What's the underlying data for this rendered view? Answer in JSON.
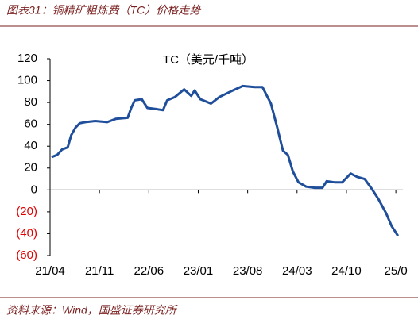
{
  "figure_title": "图表31：铜精矿粗炼费（TC）价格走势",
  "source": "资料来源：Wind，国盛证券研究所",
  "chart_data": {
    "type": "line",
    "title": "TC（美元/千吨）",
    "x": [
      0.2,
      1,
      1.7,
      2.5,
      3,
      3.6,
      4.2,
      5,
      6.4,
      8.1,
      9.3,
      11,
      11.5,
      12,
      13,
      13.8,
      15,
      16,
      16.6,
      17.7,
      19,
      20,
      20.5,
      21.3,
      22.8,
      24,
      25.6,
      27.3,
      29,
      30.1,
      31.3,
      32.2,
      33,
      33.7,
      34.4,
      35.2,
      36.3,
      37.5,
      38.6,
      39.2,
      40.3,
      41.4,
      42.6,
      43.5,
      44.6,
      45.6,
      46.5,
      47.6,
      48.4,
      49.3
    ],
    "series": [
      {
        "name": "TC",
        "color": "#1f4e9b",
        "values": [
          30,
          32,
          37,
          39,
          50,
          57,
          61,
          62,
          63,
          62,
          65,
          66,
          75,
          82,
          83,
          75,
          74,
          73,
          82,
          85,
          92,
          86,
          91,
          83,
          79,
          85,
          90,
          95,
          94,
          94,
          79,
          57,
          36,
          32,
          17,
          7,
          3,
          2,
          2,
          8,
          7,
          7,
          15,
          12,
          10,
          1,
          -8,
          -21,
          -33,
          -42
        ]
      }
    ],
    "xlim": [
      0,
      50
    ],
    "xticks": [
      {
        "value": 0,
        "label": "21/04"
      },
      {
        "value": 7,
        "label": "21/11"
      },
      {
        "value": 14,
        "label": "22/06"
      },
      {
        "value": 21,
        "label": "23/01"
      },
      {
        "value": 28,
        "label": "23/08"
      },
      {
        "value": 35,
        "label": "24/03"
      },
      {
        "value": 42,
        "label": "24/10"
      },
      {
        "value": 49,
        "label": "25/0"
      }
    ],
    "ylim": [
      -60,
      120
    ],
    "yticks": [
      120,
      100,
      80,
      60,
      40,
      20,
      0,
      {
        "value": -20,
        "label": "(20)"
      },
      {
        "value": -40,
        "label": "(40)"
      },
      {
        "value": -60,
        "label": "(60)"
      }
    ]
  }
}
